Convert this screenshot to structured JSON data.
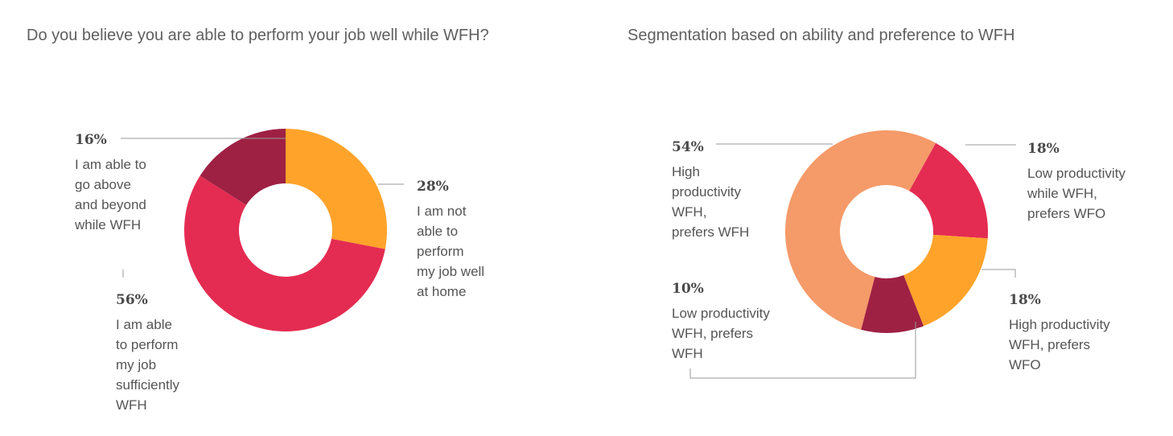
{
  "chart_data": [
    {
      "type": "pie",
      "title": "Do you believe you are able to perform your job well while WFH?",
      "slices": [
        {
          "label": "I am not able to perform my job well at home",
          "label_lines": [
            "I am not",
            "able to",
            "perform",
            "my job well",
            "at home"
          ],
          "value": 28,
          "display": "28%",
          "color": "#FFA32A"
        },
        {
          "label": "I am able to perform my job sufficiently WFH",
          "label_lines": [
            "I am able",
            "to perform",
            "my job",
            "sufficiently",
            "WFH"
          ],
          "value": 56,
          "display": "56%",
          "color": "#E42C52"
        },
        {
          "label": "I am able to go above and beyond while WFH",
          "label_lines": [
            "I am able to",
            "go above",
            "and beyond",
            "while WFH"
          ],
          "value": 16,
          "display": "16%",
          "color": "#9E2144"
        }
      ]
    },
    {
      "type": "pie",
      "title": "Segmentation based on ability and preference to WFH",
      "slices": [
        {
          "label": "Low productivity while WFH, prefers WFO",
          "label_lines": [
            "Low productivity",
            "while WFH,",
            "prefers WFO"
          ],
          "value": 18,
          "display": "18%",
          "color": "#E42C52"
        },
        {
          "label": "High productivity WFH, prefers WFO",
          "label_lines": [
            "High productivity",
            "WFH, prefers",
            "WFO"
          ],
          "value": 18,
          "display": "18%",
          "color": "#FFA32A"
        },
        {
          "label": "Low productivity WFH, prefers WFH",
          "label_lines": [
            "Low productivity",
            "WFH, prefers",
            "WFH"
          ],
          "value": 10,
          "display": "10%",
          "color": "#9E2144"
        },
        {
          "label": "High productivity WFH, prefers WFH",
          "label_lines": [
            "High",
            "productivity",
            "WFH,",
            "prefers WFH"
          ],
          "value": 54,
          "display": "54%",
          "color": "#F59A69"
        }
      ]
    }
  ]
}
